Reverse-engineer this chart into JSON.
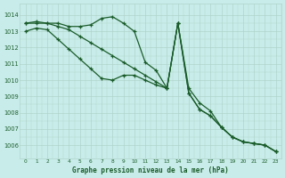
{
  "title": "Graphe pression niveau de la mer (hPa)",
  "background_color": "#c8ece9",
  "grid_color": "#b0d4cc",
  "line_color": "#1a5c2a",
  "x_ticks": [
    0,
    1,
    2,
    3,
    4,
    5,
    6,
    7,
    8,
    9,
    10,
    11,
    12,
    13,
    14,
    15,
    16,
    17,
    18,
    19,
    20,
    21,
    22,
    23
  ],
  "ylim": [
    1005.2,
    1014.7
  ],
  "yticks": [
    1006,
    1007,
    1008,
    1009,
    1010,
    1011,
    1012,
    1013,
    1014
  ],
  "series": [
    [
      1013.5,
      1013.6,
      1013.5,
      1013.5,
      1013.3,
      1013.3,
      1013.4,
      1013.8,
      1013.9,
      1013.5,
      1013.0,
      1011.1,
      1010.6,
      1009.5,
      1013.5,
      1009.5,
      1008.6,
      1008.1,
      1007.1,
      1006.5,
      1006.2,
      1006.1,
      1006.0,
      1005.6
    ],
    [
      1013.5,
      1013.5,
      1013.5,
      1013.3,
      1013.1,
      1012.7,
      1012.3,
      1011.9,
      1011.5,
      1011.1,
      1010.7,
      1010.3,
      1009.9,
      1009.5,
      1013.5,
      1009.2,
      1008.2,
      1007.8,
      1007.1,
      1006.5,
      1006.2,
      1006.1,
      1006.0,
      1005.6
    ],
    [
      1013.0,
      1013.2,
      1013.1,
      1012.5,
      1011.9,
      1011.3,
      1010.7,
      1010.1,
      1010.0,
      1010.3,
      1010.3,
      1010.0,
      1009.7,
      1009.5,
      1013.5,
      1009.2,
      1008.2,
      1007.8,
      1007.1,
      1006.5,
      1006.2,
      1006.1,
      1006.0,
      1005.6
    ]
  ]
}
